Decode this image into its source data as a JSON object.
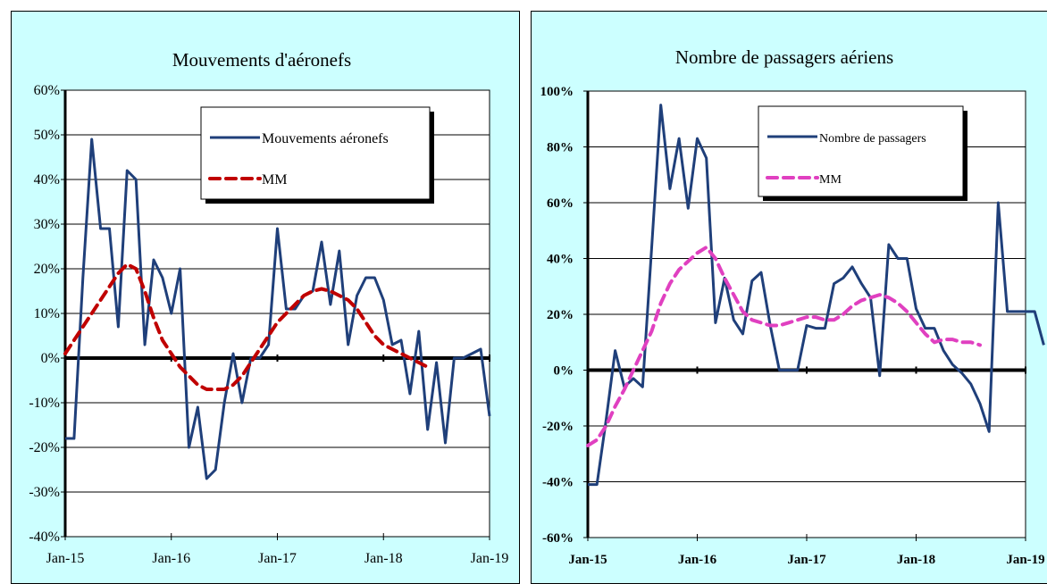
{
  "chart_data": [
    {
      "type": "line",
      "title": "Mouvements d'aéronefs",
      "ylim": [
        -0.4,
        0.6
      ],
      "yticks": [
        -0.4,
        -0.3,
        -0.2,
        -0.1,
        0,
        0.1,
        0.2,
        0.3,
        0.4,
        0.5,
        0.6
      ],
      "ytick_labels": [
        "-40%",
        "-30%",
        "-20%",
        "-10%",
        "0%",
        "10%",
        "20%",
        "30%",
        "40%",
        "50%",
        "60%"
      ],
      "xlim": [
        "2015-01",
        "2019-01"
      ],
      "xtick_labels": [
        "Jan-15",
        "Jan-16",
        "Jan-17",
        "Jan-18",
        "Jan-19"
      ],
      "bold_ticks": false,
      "legend_position": "top-right",
      "series": [
        {
          "name": "Mouvements  aéronefs",
          "color": "#1f3f7a",
          "dash": "solid",
          "start": "2015-01",
          "values": [
            -0.18,
            -0.18,
            0.18,
            0.49,
            0.29,
            0.29,
            0.07,
            0.42,
            0.4,
            0.03,
            0.22,
            0.18,
            0.1,
            0.2,
            -0.2,
            -0.11,
            -0.27,
            -0.25,
            -0.1,
            0.01,
            -0.1,
            0.0,
            0.0,
            0.03,
            0.29,
            0.11,
            0.11,
            0.14,
            0.15,
            0.26,
            0.12,
            0.24,
            0.03,
            0.14,
            0.18,
            0.18,
            0.13,
            0.03,
            0.04,
            -0.08,
            0.06,
            -0.16,
            -0.01,
            -0.19,
            0.0,
            0.0,
            0.01,
            0.02,
            -0.13
          ]
        },
        {
          "name": "MM",
          "color": "#c00000",
          "dash": "dashed",
          "start": "2015-01",
          "values": [
            0.01,
            0.04,
            0.07,
            0.1,
            0.13,
            0.16,
            0.19,
            0.21,
            0.2,
            0.15,
            0.09,
            0.04,
            0.01,
            -0.02,
            -0.04,
            -0.06,
            -0.07,
            -0.07,
            -0.07,
            -0.06,
            -0.04,
            -0.01,
            0.02,
            0.05,
            0.08,
            0.1,
            0.12,
            0.14,
            0.15,
            0.155,
            0.15,
            0.14,
            0.13,
            0.11,
            0.08,
            0.05,
            0.03,
            0.02,
            0.01,
            0.0,
            -0.01,
            -0.02
          ]
        }
      ]
    },
    {
      "type": "line",
      "title": "Nombre de passagers  aériens",
      "ylim": [
        -0.6,
        1.0
      ],
      "yticks": [
        -0.6,
        -0.4,
        -0.2,
        0,
        0.2,
        0.4,
        0.6,
        0.8,
        1.0
      ],
      "ytick_labels": [
        "-60%",
        "-40%",
        "-20%",
        "0%",
        "20%",
        "40%",
        "60%",
        "80%",
        "100%"
      ],
      "xlim": [
        "2015-01",
        "2019-01"
      ],
      "xtick_labels": [
        "Jan-15",
        "Jan-16",
        "Jan-17",
        "Jan-18",
        "Jan-19"
      ],
      "bold_ticks": true,
      "legend_position": "top-right",
      "series": [
        {
          "name": "Nombre de passagers",
          "color": "#1f3f7a",
          "dash": "solid",
          "start": "2015-01",
          "values": [
            -0.41,
            -0.41,
            -0.18,
            0.07,
            -0.06,
            -0.03,
            -0.06,
            0.44,
            0.95,
            0.65,
            0.83,
            0.58,
            0.83,
            0.76,
            0.17,
            0.33,
            0.18,
            0.13,
            0.32,
            0.35,
            0.16,
            0.0,
            0.0,
            0.0,
            0.16,
            0.15,
            0.15,
            0.31,
            0.33,
            0.37,
            0.31,
            0.26,
            -0.02,
            0.45,
            0.4,
            0.4,
            0.22,
            0.15,
            0.15,
            0.07,
            0.02,
            -0.01,
            -0.05,
            -0.12,
            -0.22,
            0.6,
            0.21,
            0.21,
            0.21,
            0.21,
            0.09
          ]
        },
        {
          "name": "MM",
          "color": "#e040c0",
          "dash": "dashed",
          "start": "2015-01",
          "values": [
            -0.27,
            -0.25,
            -0.2,
            -0.13,
            -0.07,
            0.0,
            0.07,
            0.14,
            0.24,
            0.31,
            0.36,
            0.39,
            0.42,
            0.44,
            0.4,
            0.33,
            0.27,
            0.21,
            0.18,
            0.17,
            0.16,
            0.16,
            0.17,
            0.18,
            0.19,
            0.19,
            0.18,
            0.18,
            0.2,
            0.23,
            0.25,
            0.26,
            0.27,
            0.26,
            0.24,
            0.21,
            0.17,
            0.13,
            0.1,
            0.11,
            0.11,
            0.1,
            0.1,
            0.09
          ]
        }
      ]
    }
  ]
}
